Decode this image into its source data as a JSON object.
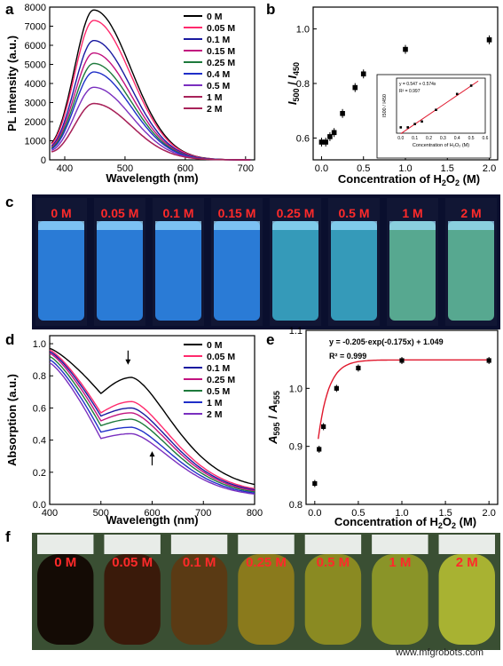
{
  "panels": {
    "a": "a",
    "b": "b",
    "c": "c",
    "d": "d",
    "e": "e",
    "f": "f"
  },
  "watermark": "www.mfgrobots.com",
  "colors": {
    "series": [
      "#000000",
      "#ff2a6d",
      "#1a1aa0",
      "#c2137f",
      "#1e7a3c",
      "#1f2fc8",
      "#7a2fbf",
      "#a8235a"
    ],
    "error_marker": "#000000",
    "fit_line": "#e0182d",
    "vial_label": "#ff2a2a"
  },
  "chart_data": [
    {
      "panel": "a",
      "type": "line",
      "xlabel": "Wavelength (nm)",
      "ylabel": "PL intensity (a.u.)",
      "xlim": [
        375,
        715
      ],
      "ylim": [
        0,
        8000
      ],
      "xticks": [
        400,
        500,
        600,
        700
      ],
      "yticks": [
        0,
        1000,
        2000,
        3000,
        4000,
        5000,
        6000,
        7000,
        8000
      ],
      "peak_nm": 448,
      "legend_position": "top-right",
      "series": [
        {
          "name": "0 M",
          "peak": 7850
        },
        {
          "name": "0.05 M",
          "peak": 7300
        },
        {
          "name": "0.1 M",
          "peak": 6250
        },
        {
          "name": "0.15 M",
          "peak": 5600
        },
        {
          "name": "0.25 M",
          "peak": 5050
        },
        {
          "name": "0.4 M",
          "peak": 4600
        },
        {
          "name": "0.5 M",
          "peak": 3800
        },
        {
          "name": "1 M",
          "peak": 2950
        },
        {
          "name": "2 M",
          "peak": 2950
        }
      ]
    },
    {
      "panel": "b",
      "type": "scatter",
      "xlabel_main": "Concentration of H",
      "xlabel_sub": "2",
      "xlabel_mid": "O",
      "xlabel_sub2": "2",
      "xlabel_end": " (M)",
      "ylabel_i1": "I",
      "ylabel_s1": "500",
      "ylabel_sep": " / ",
      "ylabel_i2": "I",
      "ylabel_s2": "450",
      "xlim": [
        -0.1,
        2.1
      ],
      "ylim": [
        0.52,
        1.08
      ],
      "xticks": [
        0.0,
        0.5,
        1.0,
        1.5,
        2.0
      ],
      "yticks": [
        0.6,
        0.8,
        1.0
      ],
      "x": [
        0,
        0.05,
        0.1,
        0.15,
        0.25,
        0.4,
        0.5,
        1.0,
        2.0
      ],
      "y": [
        0.585,
        0.585,
        0.605,
        0.62,
        0.69,
        0.785,
        0.835,
        0.925,
        0.96
      ],
      "inset": {
        "equation": "y = 0.547 + 0.574x",
        "r2": "R² = 0.997",
        "xlabel": "Concentration of H₂O₂ (M)",
        "ylabel": "I500 / I450",
        "xticks": [
          0.0,
          0.1,
          0.2,
          0.3,
          0.4,
          0.5,
          0.6
        ],
        "xlim": [
          -0.03,
          0.6
        ],
        "ylim": [
          0.55,
          0.88
        ],
        "x": [
          0,
          0.05,
          0.1,
          0.15,
          0.25,
          0.4,
          0.5
        ],
        "y": [
          0.585,
          0.585,
          0.605,
          0.62,
          0.69,
          0.785,
          0.835
        ]
      }
    },
    {
      "panel": "d",
      "type": "line",
      "xlabel": "Wavelength (nm)",
      "ylabel": "Absorption (a.u.)",
      "xlim": [
        400,
        800
      ],
      "ylim": [
        0,
        1.05
      ],
      "xticks": [
        400,
        500,
        600,
        700,
        800
      ],
      "yticks": [
        0.0,
        0.2,
        0.4,
        0.6,
        0.8,
        1.0
      ],
      "legend_position": "top-right",
      "series": [
        {
          "name": "0 M",
          "start": 0.97,
          "trough": 0.69,
          "peak": 0.79,
          "end": 0.09
        },
        {
          "name": "0.05 M",
          "start": 0.96,
          "trough": 0.57,
          "peak": 0.64,
          "end": 0.07
        },
        {
          "name": "0.1 M",
          "start": 0.95,
          "trough": 0.55,
          "peak": 0.6,
          "end": 0.065
        },
        {
          "name": "0.25 M",
          "start": 0.94,
          "trough": 0.52,
          "peak": 0.57,
          "end": 0.06
        },
        {
          "name": "0.5 M",
          "start": 0.92,
          "trough": 0.49,
          "peak": 0.53,
          "end": 0.055
        },
        {
          "name": "1 M",
          "start": 0.9,
          "trough": 0.45,
          "peak": 0.48,
          "end": 0.05
        },
        {
          "name": "2 M",
          "start": 0.88,
          "trough": 0.41,
          "peak": 0.44,
          "end": 0.045
        }
      ]
    },
    {
      "panel": "e",
      "type": "scatter",
      "equation": "y = -0.205·exp(-0.175x) + 1.049",
      "r2": "R² = 0.999",
      "xlabel_main": "Concentration of H",
      "xlabel_sub": "2",
      "xlabel_mid": "O",
      "xlabel_sub2": "2",
      "xlabel_end": " (M)",
      "ylabel_i1": "A",
      "ylabel_s1": "595",
      "ylabel_sep": " / ",
      "ylabel_i2": "A",
      "ylabel_s2": "555",
      "xlim": [
        -0.1,
        2.1
      ],
      "ylim": [
        0.8,
        1.1
      ],
      "xticks": [
        0.0,
        0.5,
        1.0,
        1.5,
        2.0
      ],
      "yticks": [
        0.8,
        0.9,
        1.0,
        1.1
      ],
      "x": [
        0,
        0.05,
        0.1,
        0.25,
        0.5,
        1.0,
        2.0
      ],
      "y": [
        0.836,
        0.895,
        0.934,
        1.0,
        1.035,
        1.048,
        1.048
      ]
    }
  ],
  "vials_c": [
    "0 M",
    "0.05 M",
    "0.1 M",
    "0.15 M",
    "0.25 M",
    "0.5 M",
    "1 M",
    "2 M"
  ],
  "vials_f": [
    "0 M",
    "0.05 M",
    "0.1 M",
    "0.25 M",
    "0.5 M",
    "1 M",
    "2 M"
  ]
}
